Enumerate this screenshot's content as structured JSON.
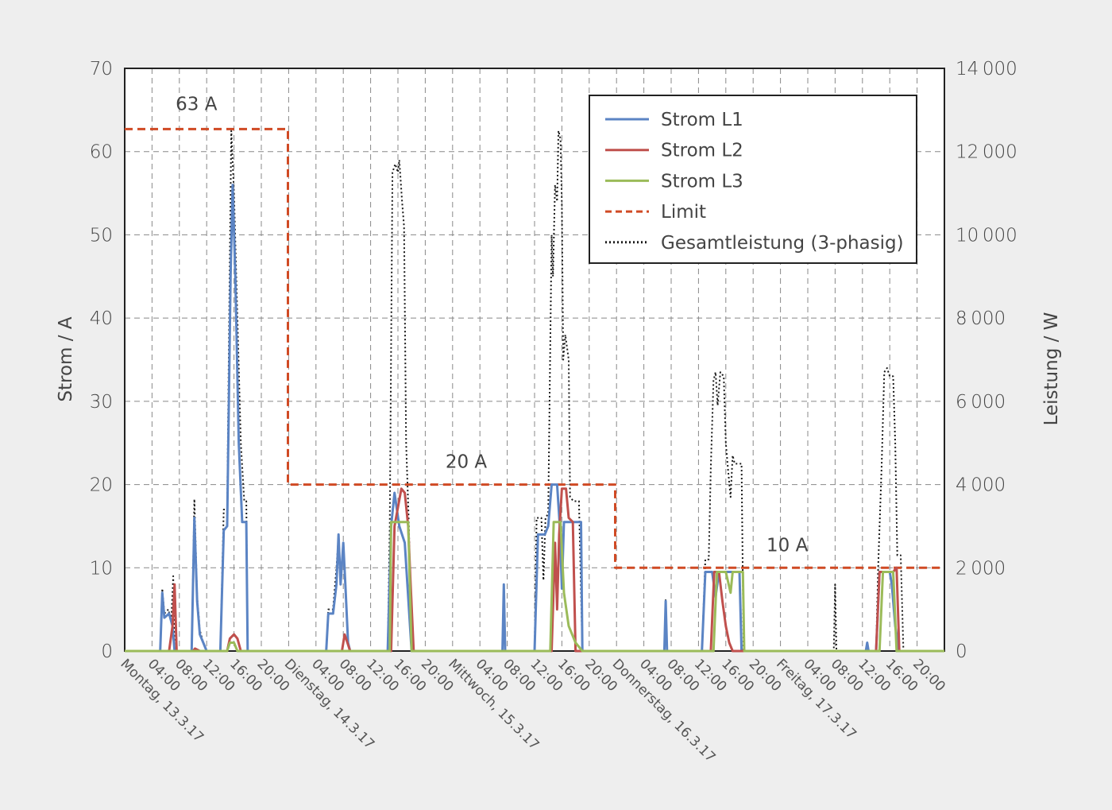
{
  "chart_data": {
    "type": "line",
    "y_left_label": "Strom / A",
    "y_right_label": "Leistung / W",
    "y_left_range": [
      0,
      70
    ],
    "y_right_range": [
      0,
      14000
    ],
    "y_left_ticks": [
      0,
      10,
      20,
      30,
      40,
      50,
      60,
      70
    ],
    "y_right_ticks": [
      "0",
      "2000",
      "4000",
      "6000",
      "8000",
      "10000",
      "12000",
      "14000"
    ],
    "x_range_hours": [
      0,
      120
    ],
    "x_tick_labels": [
      "Montag, 13.3.17",
      "04:00",
      "08:00",
      "12:00",
      "16:00",
      "20:00",
      "Dienstag, 14.3.17",
      "04:00",
      "08:00",
      "12:00",
      "16:00",
      "20:00",
      "Mittwoch, 15.3.17",
      "04:00",
      "08:00",
      "12:00",
      "16:00",
      "20:00",
      "Donnerstag, 16.3.17",
      "04:00",
      "08:00",
      "12:00",
      "16:00",
      "20:00",
      "Freitag, 17.3.17",
      "04:00",
      "08:00",
      "12:00",
      "16:00",
      "20:00"
    ],
    "grid": true,
    "legend_position": "top-right",
    "annotations": [
      {
        "text": "63 A",
        "x": 10.5,
        "y": 65
      },
      {
        "text": "20 A",
        "x": 50,
        "y": 22
      },
      {
        "text": "10 A",
        "x": 97,
        "y": 12
      }
    ],
    "series": [
      {
        "name": "Strom L1",
        "color": "#5b84c4",
        "style": "solid",
        "axis": "left",
        "points": [
          [
            0,
            0
          ],
          [
            5.2,
            0
          ],
          [
            5.5,
            7
          ],
          [
            5.8,
            4
          ],
          [
            6.5,
            4.5
          ],
          [
            7,
            3
          ],
          [
            7.3,
            0
          ],
          [
            9.8,
            0
          ],
          [
            10.2,
            16
          ],
          [
            10.6,
            6
          ],
          [
            11,
            2
          ],
          [
            11.5,
            1
          ],
          [
            12,
            0
          ],
          [
            14,
            0
          ],
          [
            14.5,
            14.5
          ],
          [
            15,
            15
          ],
          [
            15.5,
            45
          ],
          [
            15.8,
            56
          ],
          [
            16.2,
            45
          ],
          [
            16.7,
            25
          ],
          [
            17.2,
            15.5
          ],
          [
            17.8,
            15.5
          ],
          [
            18,
            0
          ],
          [
            29.5,
            0
          ],
          [
            29.8,
            4.5
          ],
          [
            30.5,
            4.5
          ],
          [
            31,
            8
          ],
          [
            31.3,
            14
          ],
          [
            31.6,
            8
          ],
          [
            32,
            13
          ],
          [
            32.3,
            8
          ],
          [
            32.7,
            1
          ],
          [
            33,
            0
          ],
          [
            38.5,
            0
          ],
          [
            39,
            15
          ],
          [
            39.5,
            19
          ],
          [
            40.2,
            15
          ],
          [
            41,
            13
          ],
          [
            42,
            0
          ],
          [
            55.3,
            0
          ],
          [
            55.5,
            8
          ],
          [
            55.7,
            0
          ],
          [
            60,
            0
          ],
          [
            60.5,
            14
          ],
          [
            61.5,
            14
          ],
          [
            62,
            15
          ],
          [
            62.5,
            20
          ],
          [
            63.3,
            20
          ],
          [
            63.7,
            15
          ],
          [
            64,
            7.5
          ],
          [
            64.3,
            15.5
          ],
          [
            65,
            15.5
          ],
          [
            66,
            15.5
          ],
          [
            66.8,
            15.5
          ],
          [
            67,
            0
          ],
          [
            79,
            0
          ],
          [
            79.2,
            6
          ],
          [
            79.4,
            0
          ],
          [
            84.5,
            0
          ],
          [
            85,
            9.5
          ],
          [
            86,
            9.5
          ],
          [
            86.5,
            6.5
          ],
          [
            87,
            9.5
          ],
          [
            88,
            9.5
          ],
          [
            89,
            9.5
          ],
          [
            90,
            9.5
          ],
          [
            90.3,
            0
          ],
          [
            108.5,
            0
          ],
          [
            108.7,
            1
          ],
          [
            108.9,
            0
          ],
          [
            110,
            0
          ],
          [
            110.5,
            9.5
          ],
          [
            112,
            9.5
          ],
          [
            112.3,
            8
          ],
          [
            112.8,
            3
          ],
          [
            113,
            2
          ],
          [
            113.2,
            0
          ],
          [
            120,
            0
          ]
        ]
      },
      {
        "name": "Strom L2",
        "color": "#c0504d",
        "style": "solid",
        "axis": "left",
        "points": [
          [
            0,
            0
          ],
          [
            6.5,
            0
          ],
          [
            7,
            3
          ],
          [
            7.3,
            8
          ],
          [
            7.6,
            0
          ],
          [
            10,
            0
          ],
          [
            10.3,
            0.3
          ],
          [
            11,
            0
          ],
          [
            15,
            0
          ],
          [
            15.4,
            1.5
          ],
          [
            16,
            2
          ],
          [
            16.5,
            1.5
          ],
          [
            17,
            0
          ],
          [
            31.8,
            0
          ],
          [
            32.2,
            2
          ],
          [
            32.6,
            1
          ],
          [
            33,
            0
          ],
          [
            39,
            0
          ],
          [
            39.5,
            15
          ],
          [
            40.5,
            19.5
          ],
          [
            41,
            19
          ],
          [
            41.5,
            15
          ],
          [
            41.8,
            9
          ],
          [
            42.3,
            0
          ],
          [
            62.5,
            0
          ],
          [
            63,
            13
          ],
          [
            63.3,
            5
          ],
          [
            63.6,
            14
          ],
          [
            64,
            19.5
          ],
          [
            64.6,
            19.5
          ],
          [
            65,
            16
          ],
          [
            65.6,
            15.5
          ],
          [
            66,
            0
          ],
          [
            85.8,
            0
          ],
          [
            86.3,
            9.5
          ],
          [
            87,
            9.5
          ],
          [
            87.5,
            6
          ],
          [
            88,
            3
          ],
          [
            88.5,
            1
          ],
          [
            89,
            0
          ],
          [
            110,
            0
          ],
          [
            110.5,
            9.5
          ],
          [
            112,
            9.5
          ],
          [
            112.5,
            9.5
          ],
          [
            113,
            10
          ],
          [
            113.4,
            0
          ],
          [
            120,
            0
          ]
        ]
      },
      {
        "name": "Strom L3",
        "color": "#9bbb59",
        "style": "solid",
        "axis": "left",
        "points": [
          [
            0,
            0
          ],
          [
            15,
            0
          ],
          [
            15.4,
            1
          ],
          [
            16,
            1
          ],
          [
            16.5,
            0
          ],
          [
            38.8,
            0
          ],
          [
            39,
            15.5
          ],
          [
            40.5,
            15.5
          ],
          [
            41.5,
            15.5
          ],
          [
            42,
            0
          ],
          [
            62.3,
            0
          ],
          [
            62.8,
            15.5
          ],
          [
            63.8,
            15.5
          ],
          [
            64.3,
            7
          ],
          [
            65,
            3
          ],
          [
            66,
            1
          ],
          [
            67,
            0
          ],
          [
            86.2,
            0
          ],
          [
            86.7,
            9.5
          ],
          [
            88,
            9.5
          ],
          [
            88.7,
            7
          ],
          [
            89,
            9.5
          ],
          [
            90.5,
            9.5
          ],
          [
            90.7,
            0
          ],
          [
            110.5,
            0
          ],
          [
            111,
            9.5
          ],
          [
            112.5,
            9.5
          ],
          [
            113,
            0
          ],
          [
            120,
            0
          ]
        ]
      },
      {
        "name": "Limit",
        "color": "#d04a24",
        "style": "dashed",
        "axis": "left",
        "points": [
          [
            0,
            62.7
          ],
          [
            23.9,
            62.7
          ],
          [
            23.9,
            20
          ],
          [
            71.8,
            20
          ],
          [
            71.8,
            10
          ],
          [
            120,
            10
          ]
        ]
      },
      {
        "name": "Gesamtleistung (3-phasig)",
        "color": "#1a1a1a",
        "style": "dotted",
        "axis": "right",
        "points": [
          [
            0,
            0
          ],
          [
            5.2,
            0
          ],
          [
            5.5,
            1500
          ],
          [
            5.8,
            900
          ],
          [
            6.4,
            1000
          ],
          [
            6.8,
            700
          ],
          [
            7.1,
            1800
          ],
          [
            7.3,
            0
          ],
          [
            9.8,
            0
          ],
          [
            10.2,
            3650
          ],
          [
            10.6,
            1300
          ],
          [
            11,
            500
          ],
          [
            11.5,
            200
          ],
          [
            12,
            0
          ],
          [
            14,
            0
          ],
          [
            14.5,
            3400
          ],
          [
            15,
            3400
          ],
          [
            15.4,
            9500
          ],
          [
            15.6,
            12500
          ],
          [
            16,
            11000
          ],
          [
            16.5,
            8000
          ],
          [
            17,
            5000
          ],
          [
            17.5,
            3600
          ],
          [
            17.8,
            3600
          ],
          [
            18,
            0
          ],
          [
            29.5,
            0
          ],
          [
            29.8,
            1000
          ],
          [
            30.5,
            1000
          ],
          [
            31,
            2000
          ],
          [
            31.3,
            2750
          ],
          [
            31.6,
            1600
          ],
          [
            32,
            2600
          ],
          [
            32.3,
            1500
          ],
          [
            32.7,
            200
          ],
          [
            33,
            0
          ],
          [
            38.5,
            0
          ],
          [
            38.8,
            3000
          ],
          [
            39.2,
            11500
          ],
          [
            39.6,
            11700
          ],
          [
            40,
            11500
          ],
          [
            40.2,
            11800
          ],
          [
            40.6,
            10800
          ],
          [
            40.9,
            10200
          ],
          [
            41.2,
            5000
          ],
          [
            41.6,
            3000
          ],
          [
            42,
            0
          ],
          [
            55.3,
            0
          ],
          [
            55.5,
            1600
          ],
          [
            55.7,
            0
          ],
          [
            60,
            0
          ],
          [
            60.3,
            3200
          ],
          [
            61,
            3200
          ],
          [
            61.3,
            1700
          ],
          [
            61.6,
            3200
          ],
          [
            62,
            3300
          ],
          [
            62.5,
            10000
          ],
          [
            62.7,
            9000
          ],
          [
            63,
            11200
          ],
          [
            63.3,
            10800
          ],
          [
            63.5,
            12500
          ],
          [
            63.8,
            12300
          ],
          [
            64,
            10700
          ],
          [
            64.2,
            7000
          ],
          [
            64.5,
            7600
          ],
          [
            65,
            7000
          ],
          [
            65.2,
            3700
          ],
          [
            65.7,
            3600
          ],
          [
            66.5,
            3600
          ],
          [
            67,
            0
          ],
          [
            79,
            0
          ],
          [
            79.2,
            1250
          ],
          [
            79.4,
            0
          ],
          [
            84.5,
            0
          ],
          [
            85,
            2200
          ],
          [
            85.5,
            2200
          ],
          [
            85.8,
            4400
          ],
          [
            86.2,
            6500
          ],
          [
            86.5,
            6700
          ],
          [
            86.8,
            5900
          ],
          [
            87.2,
            6700
          ],
          [
            87.7,
            6600
          ],
          [
            88,
            5000
          ],
          [
            88.3,
            4400
          ],
          [
            88.7,
            3700
          ],
          [
            89,
            4700
          ],
          [
            89.3,
            4500
          ],
          [
            90.3,
            4500
          ],
          [
            90.6,
            0
          ],
          [
            103.8,
            0
          ],
          [
            104,
            1600
          ],
          [
            104.2,
            0
          ],
          [
            110,
            0
          ],
          [
            110.3,
            2000
          ],
          [
            110.8,
            4400
          ],
          [
            111.2,
            6700
          ],
          [
            111.6,
            6800
          ],
          [
            112,
            6600
          ],
          [
            112.5,
            6600
          ],
          [
            112.8,
            5000
          ],
          [
            113.1,
            2300
          ],
          [
            113.6,
            2300
          ],
          [
            114,
            0
          ],
          [
            120,
            0
          ]
        ]
      }
    ]
  }
}
